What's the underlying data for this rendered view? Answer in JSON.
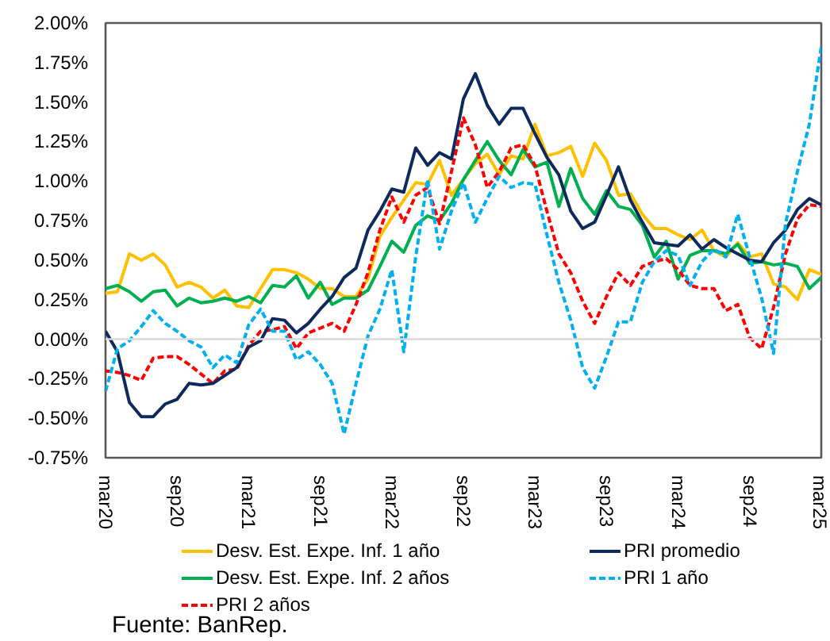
{
  "chart_data": {
    "type": "line",
    "categories": [
      "mar20",
      null,
      null,
      null,
      null,
      null,
      "sep20",
      null,
      null,
      null,
      null,
      null,
      "mar21",
      null,
      null,
      null,
      null,
      null,
      "sep21",
      null,
      null,
      null,
      null,
      null,
      "mar22",
      null,
      null,
      null,
      null,
      null,
      "sep22",
      null,
      null,
      null,
      null,
      null,
      "mar23",
      null,
      null,
      null,
      null,
      null,
      "sep23",
      null,
      null,
      null,
      null,
      null,
      "mar24",
      null,
      null,
      null,
      null,
      null,
      "sep24",
      null,
      null,
      null,
      null,
      null,
      "mar25"
    ],
    "series": [
      {
        "name": "Desv. Est. Expe. Inf. 1 año",
        "color": "#ffc000",
        "line_style": "solid",
        "values": [
          0.29,
          0.3,
          0.54,
          0.5,
          0.54,
          0.47,
          0.33,
          0.36,
          0.33,
          0.26,
          0.31,
          0.21,
          0.2,
          0.32,
          0.44,
          0.44,
          0.42,
          0.38,
          0.32,
          0.32,
          0.27,
          0.27,
          0.38,
          0.65,
          0.77,
          0.88,
          0.99,
          0.98,
          1.13,
          0.91,
          1.01,
          1.11,
          1.17,
          1.04,
          1.16,
          1.14,
          1.36,
          1.16,
          1.18,
          1.22,
          1.03,
          1.24,
          1.13,
          0.91,
          0.92,
          0.79,
          0.7,
          0.7,
          0.66,
          0.63,
          0.69,
          0.56,
          0.52,
          0.61,
          0.52,
          0.54,
          0.35,
          0.33,
          0.25,
          0.44,
          0.41
        ]
      },
      {
        "name": "Desv. Est. Expe. Inf. 2 años",
        "color": "#00b050",
        "line_style": "solid",
        "values": [
          0.32,
          0.34,
          0.3,
          0.24,
          0.3,
          0.31,
          0.21,
          0.26,
          0.23,
          0.24,
          0.26,
          0.24,
          0.27,
          0.23,
          0.34,
          0.33,
          0.4,
          0.26,
          0.36,
          0.22,
          0.26,
          0.26,
          0.31,
          0.46,
          0.62,
          0.55,
          0.72,
          0.78,
          0.75,
          0.86,
          1.01,
          1.13,
          1.25,
          1.13,
          1.04,
          1.2,
          1.09,
          1.12,
          0.84,
          1.08,
          0.89,
          0.79,
          0.94,
          0.84,
          0.82,
          0.72,
          0.52,
          0.62,
          0.38,
          0.53,
          0.56,
          0.56,
          0.54,
          0.6,
          0.48,
          0.49,
          0.47,
          0.48,
          0.46,
          0.32,
          0.39
        ]
      },
      {
        "name": "PRI 2 años",
        "color": "#ff0000",
        "line_style": "dashed",
        "values": [
          -0.2,
          -0.21,
          -0.23,
          -0.26,
          -0.12,
          -0.11,
          -0.11,
          -0.16,
          -0.22,
          -0.28,
          -0.2,
          -0.19,
          -0.04,
          0.05,
          0.06,
          0.08,
          -0.06,
          0.04,
          0.07,
          0.1,
          0.05,
          0.22,
          0.42,
          0.69,
          0.9,
          0.74,
          0.91,
          0.96,
          0.73,
          1.06,
          1.4,
          1.23,
          0.96,
          1.06,
          1.21,
          1.23,
          1.1,
          0.81,
          0.54,
          0.42,
          0.24,
          0.1,
          0.27,
          0.42,
          0.34,
          0.46,
          0.49,
          0.51,
          0.44,
          0.34,
          0.32,
          0.32,
          0.18,
          0.22,
          0.01,
          -0.06,
          0.2,
          0.54,
          0.76,
          0.85,
          0.84
        ]
      },
      {
        "name": "PRI promedio",
        "color": "#0e2a5c",
        "line_style": "solid",
        "values": [
          0.05,
          -0.08,
          -0.4,
          -0.49,
          -0.49,
          -0.41,
          -0.38,
          -0.28,
          -0.29,
          -0.28,
          -0.23,
          -0.18,
          -0.05,
          -0.01,
          0.13,
          0.12,
          0.04,
          0.1,
          0.19,
          0.27,
          0.39,
          0.45,
          0.69,
          0.81,
          0.95,
          0.93,
          1.21,
          1.1,
          1.18,
          1.14,
          1.52,
          1.68,
          1.48,
          1.36,
          1.46,
          1.46,
          1.3,
          1.15,
          1.04,
          0.81,
          0.7,
          0.74,
          0.91,
          1.09,
          0.88,
          0.74,
          0.61,
          0.6,
          0.59,
          0.66,
          0.57,
          0.63,
          0.58,
          0.54,
          0.5,
          0.49,
          0.61,
          0.69,
          0.82,
          0.89,
          0.85
        ]
      },
      {
        "name": "PRI 1 año",
        "color": "#00b0f0",
        "line_style": "dashed",
        "values": [
          -0.33,
          -0.06,
          -0.01,
          0.08,
          0.18,
          0.1,
          0.05,
          -0.01,
          -0.05,
          -0.18,
          -0.1,
          -0.15,
          0.09,
          0.19,
          0.05,
          0.05,
          -0.13,
          -0.08,
          -0.16,
          -0.28,
          -0.6,
          -0.28,
          0.02,
          0.19,
          0.44,
          -0.08,
          0.52,
          1.01,
          0.57,
          0.81,
          0.99,
          0.74,
          0.89,
          1.03,
          0.96,
          0.99,
          0.98,
          0.66,
          0.36,
          0.12,
          -0.18,
          -0.31,
          -0.11,
          0.11,
          0.11,
          0.36,
          0.49,
          0.56,
          0.53,
          0.34,
          0.49,
          0.57,
          0.52,
          0.79,
          0.52,
          0.26,
          -0.09,
          0.73,
          1.06,
          1.36,
          1.85
        ]
      }
    ],
    "ylim": [
      -0.75,
      2.0
    ],
    "yticks": [
      {
        "value": -0.75,
        "label": "-0.75%"
      },
      {
        "value": -0.5,
        "label": "-0.50%"
      },
      {
        "value": -0.25,
        "label": "-0.25%"
      },
      {
        "value": 0,
        "label": "0.00%"
      },
      {
        "value": 0.25,
        "label": "0.25%"
      },
      {
        "value": 0.5,
        "label": "0.50%"
      },
      {
        "value": 0.75,
        "label": "0.75%"
      },
      {
        "value": 1.0,
        "label": "1.00%"
      },
      {
        "value": 1.25,
        "label": "1.25%"
      },
      {
        "value": 1.5,
        "label": "1.50%"
      },
      {
        "value": 1.75,
        "label": "1.75%"
      },
      {
        "value": 2.0,
        "label": "2.00%"
      }
    ],
    "ref_lines": [
      {
        "axis": "y",
        "value": 0,
        "color": "#d9d9d9"
      }
    ],
    "grid": false,
    "legend": "bottom",
    "marker": "none",
    "annotations": [
      "Fuente: BanRep."
    ]
  }
}
